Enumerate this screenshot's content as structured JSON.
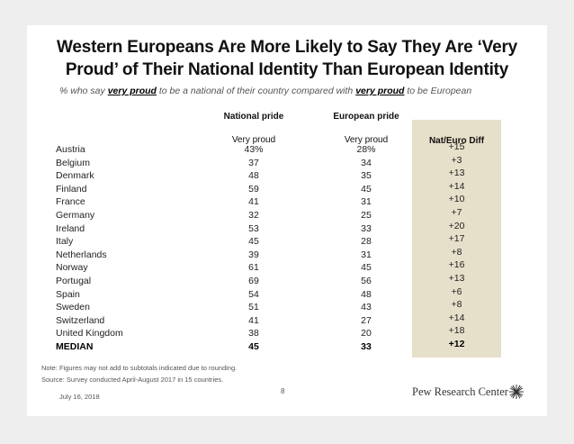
{
  "title_line1": "Western Europeans Are More Likely to Say They Are ‘Very",
  "title_line2": "Proud’ of Their National Identity Than European Identity",
  "subtitle": {
    "prefix": "% who say ",
    "em1": "very proud",
    "middle": " to be a national of their country compared with ",
    "em2": "very proud",
    "suffix": " to be European"
  },
  "headers": {
    "national": "National pride",
    "european": "European pride",
    "national_sub": "Very proud",
    "european_sub": "Very proud",
    "diff": "Nat/Euro Diff"
  },
  "chart_data": {
    "type": "table",
    "columns": [
      "",
      "National pride: Very proud",
      "European pride: Very proud",
      "Nat/Euro Diff"
    ],
    "rows": [
      {
        "country": "Austria",
        "national": "43%",
        "european": "28%",
        "diff": "+15"
      },
      {
        "country": "Belgium",
        "national": "37",
        "european": "34",
        "diff": "+3"
      },
      {
        "country": "Denmark",
        "national": "48",
        "european": "35",
        "diff": "+13"
      },
      {
        "country": "Finland",
        "national": "59",
        "european": "45",
        "diff": "+14"
      },
      {
        "country": "France",
        "national": "41",
        "european": "31",
        "diff": "+10"
      },
      {
        "country": "Germany",
        "national": "32",
        "european": "25",
        "diff": "+7"
      },
      {
        "country": "Ireland",
        "national": "53",
        "european": "33",
        "diff": "+20"
      },
      {
        "country": "Italy",
        "national": "45",
        "european": "28",
        "diff": "+17"
      },
      {
        "country": "Netherlands",
        "national": "39",
        "european": "31",
        "diff": "+8"
      },
      {
        "country": "Norway",
        "national": "61",
        "european": "45",
        "diff": "+16"
      },
      {
        "country": "Portugal",
        "national": "69",
        "european": "56",
        "diff": "+13"
      },
      {
        "country": "Spain",
        "national": "54",
        "european": "48",
        "diff": "+6"
      },
      {
        "country": "Sweden",
        "national": "51",
        "european": "43",
        "diff": "+8"
      },
      {
        "country": "Switzerland",
        "national": "41",
        "european": "27",
        "diff": "+14"
      },
      {
        "country": "United Kingdom",
        "national": "38",
        "european": "20",
        "diff": "+18"
      },
      {
        "country": "MEDIAN",
        "national": "45",
        "european": "33",
        "diff": "+12"
      }
    ],
    "highlight_color": "#e6dfc9"
  },
  "note": "Note: Figures may not add to subtotals indicated due to rounding.",
  "source": "Source: Survey conducted April-August 2017 in 15 countries.",
  "date": "July 16, 2018",
  "page_number": "8",
  "logo_text": "Pew Research Center"
}
